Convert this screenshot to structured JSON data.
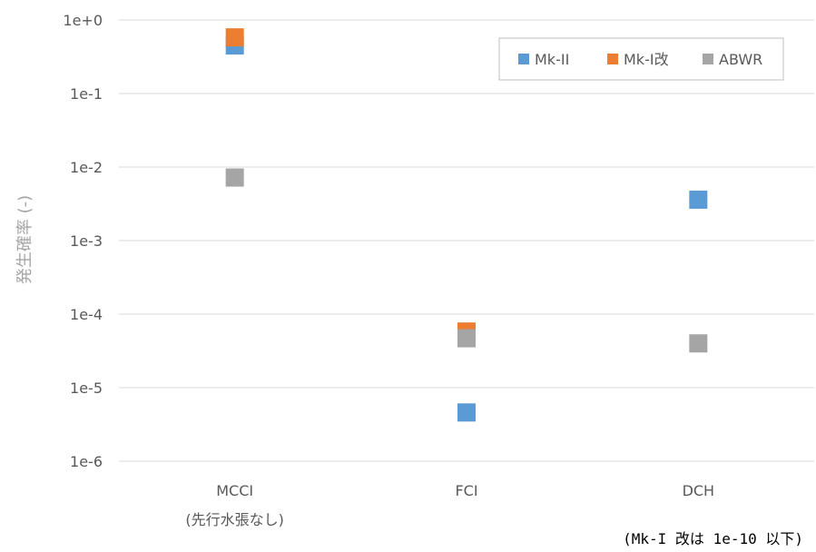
{
  "chart_data": {
    "type": "scatter",
    "title": "",
    "ylabel": "発生確率 (-)",
    "xlabel": "",
    "yscale": "log",
    "ylim": [
      1e-06,
      1
    ],
    "yticks": [
      "1e-6",
      "1e-5",
      "1e-4",
      "1e-3",
      "1e-2",
      "1e-1",
      "1e+0"
    ],
    "categories": [
      "MCCI\n(先行水張なし)",
      "FCI",
      "DCH"
    ],
    "grid": "horizontal",
    "legend_position": "top-right",
    "series": [
      {
        "name": "Mk-II",
        "color": "#5b9bd5",
        "values": [
          0.45,
          4.6e-06,
          0.0036
        ]
      },
      {
        "name": "Mk-I改",
        "color": "#ed7d31",
        "values": [
          0.58,
          5.8e-05,
          null
        ]
      },
      {
        "name": "ABWR",
        "color": "#a5a5a5",
        "values": [
          0.0072,
          4.7e-05,
          4e-05
        ]
      }
    ]
  },
  "note": "(Mk-I 改は 1e-10 以下)"
}
